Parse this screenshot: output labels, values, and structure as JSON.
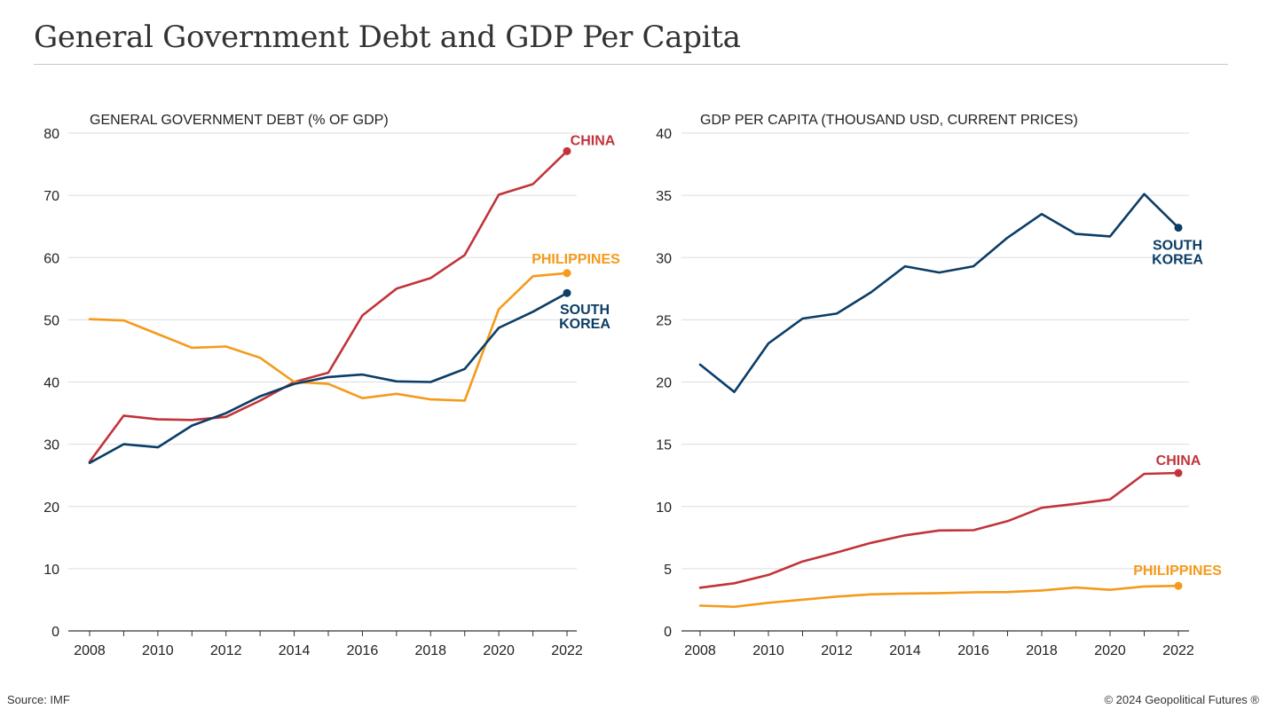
{
  "page": {
    "title": "General Government Debt and GDP Per Capita",
    "source": "Source: IMF",
    "copyright": "© 2024 Geopolitical Futures ®"
  },
  "colors": {
    "china": "#c1343a",
    "philippines": "#f59a1b",
    "south_korea": "#0b3d66",
    "grid": "#dddddd",
    "axis": "#333333"
  },
  "chart_data": [
    {
      "type": "line",
      "title": "GENERAL GOVERNMENT DEBT (% OF GDP)",
      "xlabel": "",
      "ylabel": "",
      "x": [
        2008,
        2009,
        2010,
        2011,
        2012,
        2013,
        2014,
        2015,
        2016,
        2017,
        2018,
        2019,
        2020,
        2021,
        2022
      ],
      "xticks": [
        "2008",
        "2010",
        "2012",
        "2014",
        "2016",
        "2018",
        "2020",
        "2022"
      ],
      "ylim": [
        0,
        80
      ],
      "yticks": [
        0,
        10,
        20,
        30,
        40,
        50,
        60,
        70,
        80
      ],
      "grid": true,
      "series": [
        {
          "name": "CHINA",
          "label_lines": [
            "CHINA"
          ],
          "color_key": "china",
          "values": [
            27.2,
            34.6,
            34.0,
            33.9,
            34.4,
            37.0,
            40.0,
            41.5,
            50.7,
            55.0,
            56.7,
            60.4,
            70.1,
            71.8,
            77.1
          ]
        },
        {
          "name": "PHILIPPINES",
          "label_lines": [
            "PHILIPPINES"
          ],
          "color_key": "philippines",
          "values": [
            50.1,
            49.9,
            47.7,
            45.5,
            45.7,
            43.9,
            40.0,
            39.7,
            37.4,
            38.1,
            37.2,
            37.0,
            51.7,
            57.0,
            57.5
          ]
        },
        {
          "name": "SOUTH KOREA",
          "label_lines": [
            "SOUTH",
            "KOREA"
          ],
          "color_key": "south_korea",
          "values": [
            27.0,
            30.0,
            29.5,
            33.0,
            35.0,
            37.7,
            39.7,
            40.8,
            41.2,
            40.1,
            40.0,
            42.1,
            48.7,
            51.3,
            54.3
          ]
        }
      ]
    },
    {
      "type": "line",
      "title": "GDP PER CAPITA (THOUSAND USD, CURRENT PRICES)",
      "xlabel": "",
      "ylabel": "",
      "x": [
        2008,
        2009,
        2010,
        2011,
        2012,
        2013,
        2014,
        2015,
        2016,
        2017,
        2018,
        2019,
        2020,
        2021,
        2022
      ],
      "xticks": [
        "2008",
        "2010",
        "2012",
        "2014",
        "2016",
        "2018",
        "2020",
        "2022"
      ],
      "ylim": [
        0,
        40
      ],
      "yticks": [
        0,
        5,
        10,
        15,
        20,
        25,
        30,
        35,
        40
      ],
      "grid": true,
      "series": [
        {
          "name": "SOUTH KOREA",
          "label_lines": [
            "SOUTH",
            "KOREA"
          ],
          "color_key": "south_korea",
          "values": [
            21.4,
            19.2,
            23.1,
            25.1,
            25.5,
            27.2,
            29.3,
            28.8,
            29.3,
            31.6,
            33.5,
            31.9,
            31.7,
            35.1,
            32.4
          ]
        },
        {
          "name": "CHINA",
          "label_lines": [
            "CHINA"
          ],
          "color_key": "china",
          "values": [
            3.47,
            3.83,
            4.5,
            5.58,
            6.3,
            7.07,
            7.68,
            8.07,
            8.09,
            8.82,
            9.9,
            10.21,
            10.57,
            12.62,
            12.69
          ]
        },
        {
          "name": "PHILIPPINES",
          "label_lines": [
            "PHILIPPINES"
          ],
          "color_key": "philippines",
          "values": [
            2.03,
            1.94,
            2.26,
            2.51,
            2.76,
            2.94,
            3.0,
            3.04,
            3.1,
            3.12,
            3.25,
            3.49,
            3.3,
            3.57,
            3.62
          ]
        }
      ]
    }
  ]
}
